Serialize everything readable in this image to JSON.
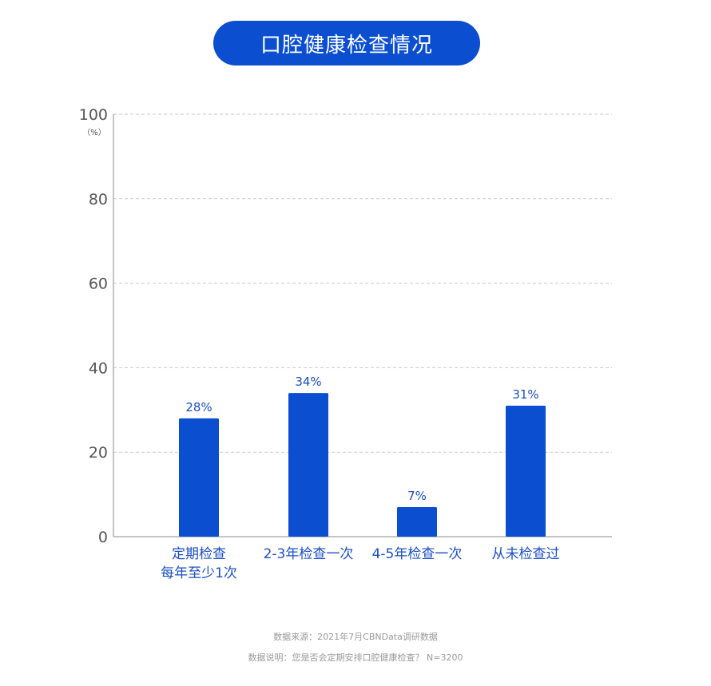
{
  "title": "口腔健康检查情况",
  "chart_data": {
    "type": "bar",
    "categories": [
      [
        "定期检查",
        "每年至少1次"
      ],
      [
        "2-3年检查一次"
      ],
      [
        "4-5年检查一次"
      ],
      [
        "从未检查过"
      ]
    ],
    "values": [
      28,
      34,
      7,
      31
    ],
    "value_labels": [
      "28%",
      "34%",
      "7%",
      "31%"
    ],
    "ylim": [
      0,
      100
    ],
    "yticks": [
      "0",
      "20",
      "40",
      "60",
      "80",
      "100"
    ],
    "ylabel": "（%）",
    "grid": true,
    "bar_color": "#0b4fd0"
  },
  "footer": {
    "source": "数据来源：2021年7月CBNData调研数据",
    "note": "数据说明：您是否会定期安排口腔健康检查？ N=3200"
  }
}
